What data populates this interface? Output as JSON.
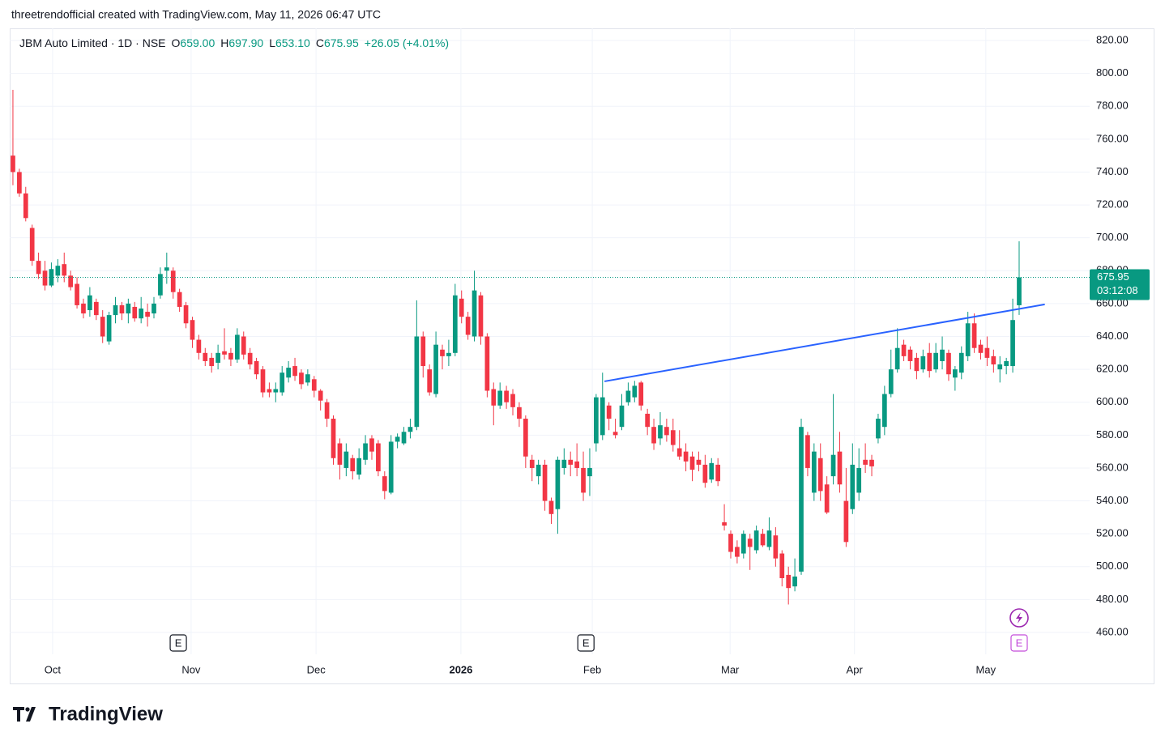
{
  "header": {
    "credit": "threetrendofficial created with TradingView.com, May 11, 2026 06:47 UTC"
  },
  "footer": {
    "brand": "TradingView"
  },
  "chart_data": {
    "type": "candlestick",
    "legend": {
      "symbol": "JBM Auto Limited · 1D · NSE",
      "fields": [
        {
          "key": "O",
          "value": "659.00"
        },
        {
          "key": "H",
          "value": "697.90"
        },
        {
          "key": "L",
          "value": "653.10"
        },
        {
          "key": "C",
          "value": "675.95"
        }
      ],
      "change": "+26.05 (+4.01%)"
    },
    "up_color": "#089981",
    "down_color": "#f23645",
    "candles": [
      [
        750,
        790,
        732,
        740
      ],
      [
        740,
        742,
        725,
        727
      ],
      [
        727,
        731,
        710,
        712
      ],
      [
        706,
        708,
        683,
        686
      ],
      [
        686,
        691,
        675,
        678
      ],
      [
        680,
        686,
        668,
        671
      ],
      [
        671,
        685,
        670,
        681
      ],
      [
        677,
        687,
        673,
        683
      ],
      [
        684,
        691,
        673,
        677
      ],
      [
        677,
        680,
        668,
        670
      ],
      [
        672,
        676,
        657,
        659
      ],
      [
        660,
        663,
        651,
        654
      ],
      [
        656,
        670,
        652,
        665
      ],
      [
        661,
        663,
        650,
        653
      ],
      [
        652,
        656,
        636,
        640
      ],
      [
        637,
        655,
        635,
        653
      ],
      [
        653,
        664,
        648,
        659
      ],
      [
        659,
        661,
        650,
        654
      ],
      [
        654,
        663,
        648,
        660
      ],
      [
        658,
        661,
        649,
        651
      ],
      [
        651,
        664,
        648,
        657
      ],
      [
        655,
        660,
        646,
        652
      ],
      [
        654,
        664,
        651,
        660
      ],
      [
        665,
        682,
        663,
        678
      ],
      [
        680,
        691,
        672,
        682
      ],
      [
        680,
        682,
        663,
        667
      ],
      [
        667,
        669,
        655,
        658
      ],
      [
        659,
        661,
        645,
        648
      ],
      [
        650,
        652,
        633,
        638
      ],
      [
        638,
        641,
        626,
        630
      ],
      [
        630,
        633,
        622,
        625
      ],
      [
        627,
        630,
        618,
        622
      ],
      [
        624,
        635,
        620,
        630
      ],
      [
        631,
        645,
        626,
        629
      ],
      [
        630,
        633,
        622,
        626
      ],
      [
        626,
        645,
        624,
        641
      ],
      [
        640,
        643,
        626,
        629
      ],
      [
        630,
        633,
        620,
        623
      ],
      [
        625,
        627,
        614,
        617
      ],
      [
        620,
        622,
        603,
        606
      ],
      [
        608,
        612,
        603,
        606
      ],
      [
        606,
        612,
        600,
        608
      ],
      [
        606,
        622,
        604,
        618
      ],
      [
        615,
        625,
        612,
        621
      ],
      [
        622,
        627,
        613,
        616
      ],
      [
        618,
        620,
        608,
        611
      ],
      [
        612,
        620,
        610,
        617
      ],
      [
        614,
        616,
        603,
        607
      ],
      [
        607,
        608,
        595,
        601
      ],
      [
        600,
        602,
        585,
        590
      ],
      [
        590,
        592,
        562,
        566
      ],
      [
        575,
        578,
        553,
        562
      ],
      [
        560,
        575,
        555,
        570
      ],
      [
        566,
        568,
        553,
        558
      ],
      [
        556,
        572,
        553,
        566
      ],
      [
        565,
        580,
        562,
        575
      ],
      [
        578,
        580,
        565,
        570
      ],
      [
        575,
        577,
        555,
        558
      ],
      [
        555,
        558,
        541,
        546
      ],
      [
        545,
        580,
        544,
        576
      ],
      [
        576,
        581,
        572,
        579
      ],
      [
        575,
        585,
        574,
        582
      ],
      [
        582,
        590,
        578,
        585
      ],
      [
        585,
        662,
        583,
        640
      ],
      [
        640,
        643,
        615,
        622
      ],
      [
        620,
        623,
        604,
        606
      ],
      [
        605,
        643,
        603,
        635
      ],
      [
        632,
        635,
        620,
        628
      ],
      [
        628,
        638,
        622,
        630
      ],
      [
        630,
        672,
        628,
        665
      ],
      [
        663,
        668,
        648,
        652
      ],
      [
        652,
        655,
        638,
        641
      ],
      [
        640,
        680,
        637,
        668
      ],
      [
        665,
        667,
        635,
        640
      ],
      [
        640,
        642,
        603,
        607
      ],
      [
        608,
        612,
        586,
        598
      ],
      [
        598,
        612,
        596,
        607
      ],
      [
        607,
        610,
        596,
        600
      ],
      [
        605,
        608,
        592,
        597
      ],
      [
        597,
        600,
        585,
        590
      ],
      [
        590,
        592,
        560,
        567
      ],
      [
        565,
        568,
        552,
        560
      ],
      [
        555,
        565,
        550,
        562
      ],
      [
        562,
        565,
        534,
        540
      ],
      [
        540,
        542,
        526,
        532
      ],
      [
        535,
        567,
        520,
        565
      ],
      [
        560,
        572,
        556,
        565
      ],
      [
        565,
        570,
        555,
        562
      ],
      [
        564,
        575,
        555,
        560
      ],
      [
        560,
        570,
        540,
        545
      ],
      [
        555,
        572,
        543,
        560
      ],
      [
        575,
        605,
        570,
        603
      ],
      [
        580,
        618,
        577,
        603
      ],
      [
        598,
        600,
        583,
        590
      ],
      [
        582,
        590,
        578,
        580
      ],
      [
        585,
        605,
        583,
        598
      ],
      [
        600,
        612,
        598,
        607
      ],
      [
        603,
        613,
        600,
        610
      ],
      [
        612,
        613,
        595,
        598
      ],
      [
        593,
        596,
        580,
        585
      ],
      [
        585,
        590,
        571,
        575
      ],
      [
        578,
        594,
        574,
        586
      ],
      [
        585,
        590,
        576,
        580
      ],
      [
        583,
        590,
        570,
        574
      ],
      [
        572,
        583,
        565,
        567
      ],
      [
        570,
        575,
        558,
        564
      ],
      [
        567,
        570,
        552,
        559
      ],
      [
        565,
        570,
        558,
        562
      ],
      [
        562,
        568,
        548,
        551
      ],
      [
        553,
        566,
        551,
        563
      ],
      [
        562,
        566,
        549,
        552
      ],
      [
        527,
        538,
        522,
        525
      ],
      [
        520,
        522,
        505,
        509
      ],
      [
        512,
        516,
        502,
        506
      ],
      [
        508,
        522,
        505,
        520
      ],
      [
        517,
        520,
        498,
        512
      ],
      [
        510,
        525,
        508,
        522
      ],
      [
        520,
        523,
        512,
        513
      ],
      [
        512,
        530,
        510,
        522
      ],
      [
        519,
        524,
        500,
        505
      ],
      [
        508,
        510,
        488,
        493
      ],
      [
        495,
        500,
        477,
        487
      ],
      [
        488,
        505,
        485,
        494
      ],
      [
        497,
        590,
        495,
        585
      ],
      [
        580,
        582,
        555,
        560
      ],
      [
        545,
        575,
        540,
        570
      ],
      [
        566,
        575,
        540,
        546
      ],
      [
        550,
        555,
        532,
        533
      ],
      [
        555,
        605,
        550,
        568
      ],
      [
        570,
        582,
        545,
        550
      ],
      [
        540,
        560,
        512,
        515
      ],
      [
        535,
        575,
        532,
        562
      ],
      [
        545,
        572,
        540,
        560
      ],
      [
        565,
        575,
        557,
        562
      ],
      [
        565,
        568,
        555,
        561
      ],
      [
        578,
        593,
        575,
        590
      ],
      [
        585,
        610,
        580,
        605
      ],
      [
        605,
        632,
        603,
        620
      ],
      [
        620,
        645,
        618,
        633
      ],
      [
        635,
        638,
        625,
        628
      ],
      [
        632,
        634,
        620,
        625
      ],
      [
        627,
        630,
        614,
        619
      ],
      [
        620,
        632,
        618,
        628
      ],
      [
        630,
        636,
        615,
        619
      ],
      [
        620,
        636,
        618,
        630
      ],
      [
        625,
        640,
        620,
        632
      ],
      [
        630,
        632,
        613,
        617
      ],
      [
        615,
        622,
        607,
        620
      ],
      [
        618,
        634,
        614,
        630
      ],
      [
        628,
        655,
        625,
        648
      ],
      [
        648,
        654,
        630,
        633
      ],
      [
        635,
        638,
        626,
        630
      ],
      [
        633,
        640,
        622,
        627
      ],
      [
        628,
        632,
        618,
        623
      ],
      [
        620,
        628,
        612,
        623
      ],
      [
        622,
        627,
        617,
        625
      ],
      [
        622,
        663,
        618,
        650
      ],
      [
        659,
        697.9,
        653.1,
        675.95
      ]
    ],
    "last_price": 675.95,
    "last_price_label": "675.95",
    "countdown": "03:12:08",
    "trendline": {
      "x": [
        92.3,
        161
      ],
      "y": [
        612.7,
        659.5
      ],
      "color": "#2962ff"
    },
    "events": [
      {
        "x": 25.8,
        "label": "E"
      },
      {
        "x": 89.4,
        "label": "E"
      },
      {
        "x": 157,
        "label": "E"
      }
    ],
    "xlim": [
      -0.5,
      168
    ],
    "xticks": [
      {
        "value": 6.19,
        "label": "Oct"
      },
      {
        "value": 27.8,
        "label": "Nov"
      },
      {
        "value": 47.3,
        "label": "Dec"
      },
      {
        "value": 69.9,
        "label": "2026"
      },
      {
        "value": 90.4,
        "label": "Feb"
      },
      {
        "value": 111.9,
        "label": "Mar"
      },
      {
        "value": 131.3,
        "label": "Apr"
      },
      {
        "value": 151.8,
        "label": "May"
      }
    ],
    "ylim": [
      446.7,
      827.4
    ],
    "yticks": [
      {
        "value": 460,
        "label": "460.00"
      },
      {
        "value": 480,
        "label": "480.00"
      },
      {
        "value": 500,
        "label": "500.00"
      },
      {
        "value": 520,
        "label": "520.00"
      },
      {
        "value": 540,
        "label": "540.00"
      },
      {
        "value": 560,
        "label": "560.00"
      },
      {
        "value": 580,
        "label": "580.00"
      },
      {
        "value": 600,
        "label": "600.00"
      },
      {
        "value": 620,
        "label": "620.00"
      },
      {
        "value": 640,
        "label": "640.00"
      },
      {
        "value": 660,
        "label": "660.00"
      },
      {
        "value": 680,
        "label": "680.00"
      },
      {
        "value": 700,
        "label": "700.00"
      },
      {
        "value": 720,
        "label": "720.00"
      },
      {
        "value": 740,
        "label": "740.00"
      },
      {
        "value": 760,
        "label": "760.00"
      },
      {
        "value": 780,
        "label": "780.00"
      },
      {
        "value": 800,
        "label": "800.00"
      },
      {
        "value": 820,
        "label": "820.00"
      }
    ],
    "grid": true
  }
}
